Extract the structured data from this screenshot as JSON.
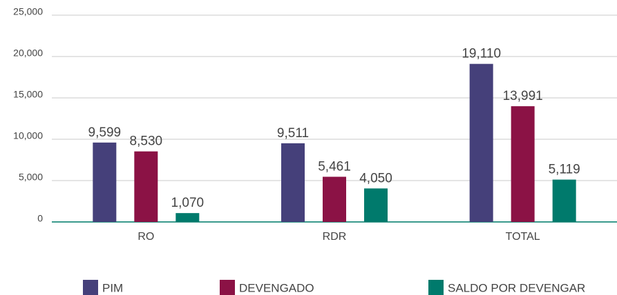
{
  "chart_data": {
    "type": "bar",
    "categories": [
      "RO",
      "RDR",
      "TOTAL"
    ],
    "series": [
      {
        "name": "PIM",
        "color": "#45407a",
        "values": [
          9599,
          9511,
          19110
        ],
        "value_labels": [
          "9,599",
          "9,511",
          "19,110"
        ]
      },
      {
        "name": "DEVENGADO",
        "color": "#8b1245",
        "values": [
          8530,
          5461,
          13991
        ],
        "value_labels": [
          "8,530",
          "5,461",
          "13,991"
        ]
      },
      {
        "name": "SALDO POR DEVENGAR",
        "color": "#007a6c",
        "values": [
          1070,
          4050,
          5119
        ],
        "value_labels": [
          "1,070",
          "4,050",
          "5,119"
        ]
      }
    ],
    "ylim": [
      0,
      25000
    ],
    "yticks": [
      0,
      {
        "value": 5000,
        "label": "5,000"
      },
      {
        "value": 10000,
        "label": "10,000"
      },
      {
        "value": 15000,
        "label": "15,000"
      },
      {
        "value": 20000,
        "label": "20,000"
      },
      {
        "value": 25000,
        "label": "25,000"
      }
    ],
    "grid": true,
    "legend": "bottom"
  }
}
